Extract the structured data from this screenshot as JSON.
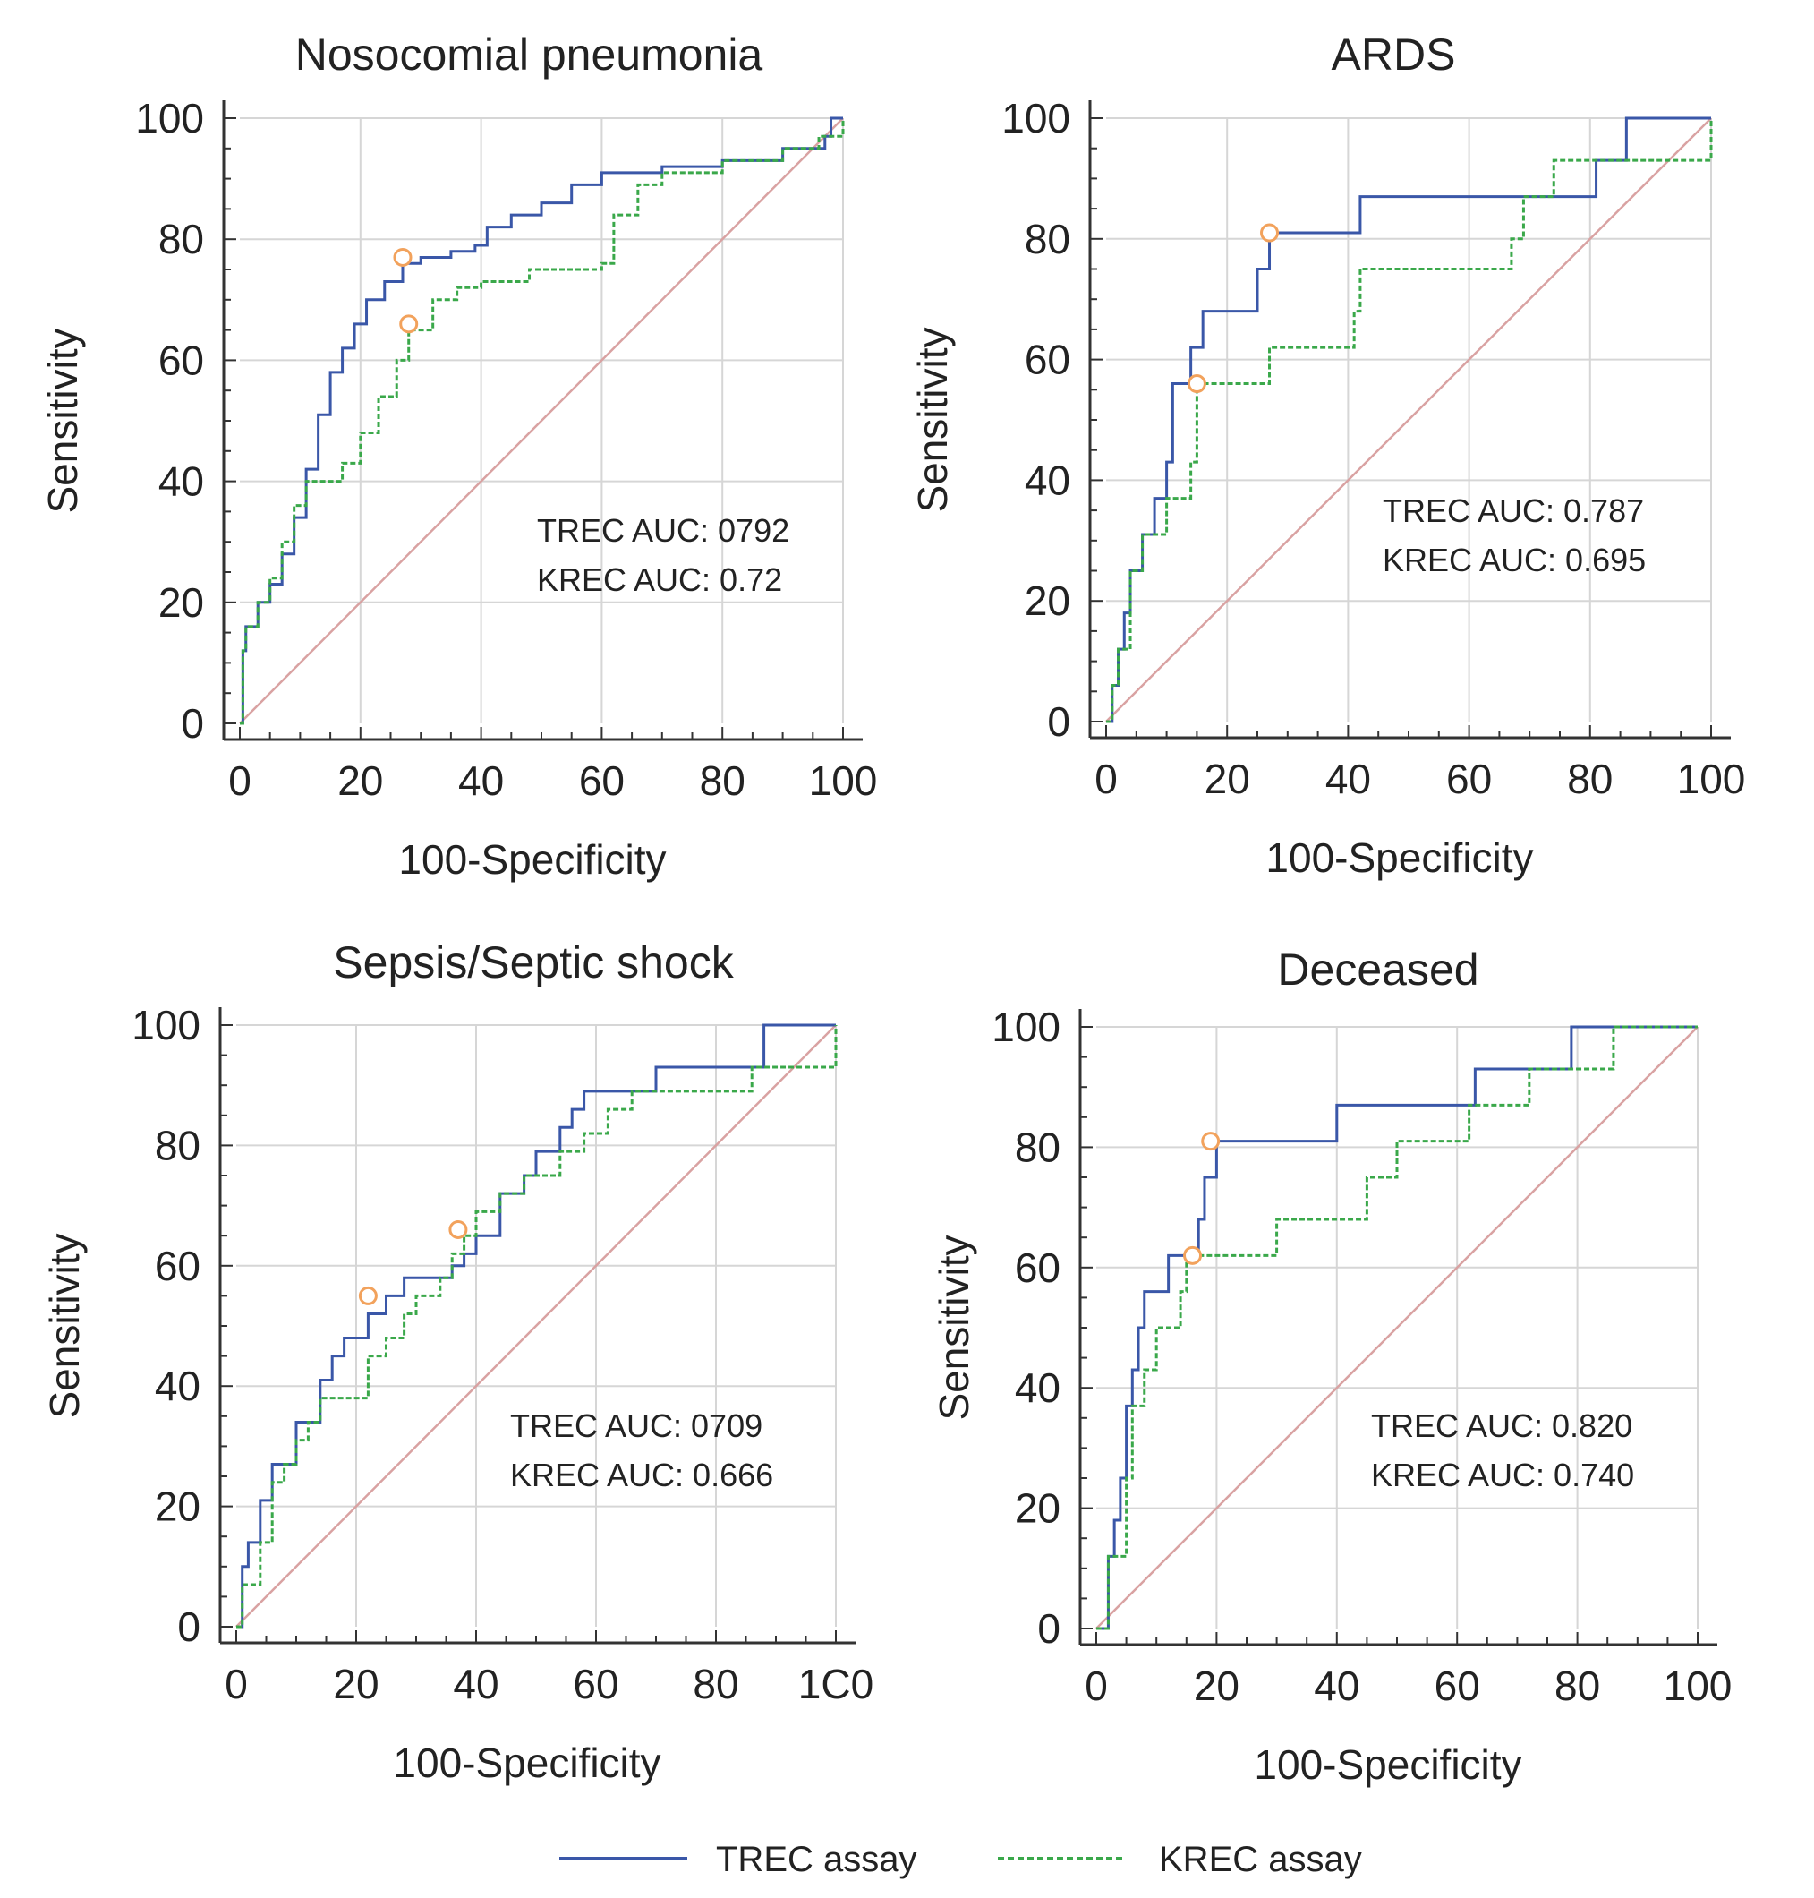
{
  "colors": {
    "trec": "#3a57a8",
    "krec": "#3aa84a",
    "reference": "#d9a2a2",
    "cutoff_marker": "#f2a25c",
    "grid": "#d6d6d6",
    "axis": "#333333"
  },
  "legend": {
    "trec_label": "TREC assay",
    "krec_label": "KREC assay"
  },
  "chart_data": [
    {
      "type": "line",
      "title": "Nosocomial pneumonia",
      "xlabel": "100-Specificity",
      "ylabel": "Sensitivity",
      "xlim": [
        0,
        100
      ],
      "ylim": [
        0,
        100
      ],
      "xticks": [
        0,
        20,
        40,
        60,
        80,
        100
      ],
      "yticks": [
        0,
        20,
        40,
        60,
        80,
        100
      ],
      "xtick_labels": [
        "0",
        "20",
        "40",
        "60",
        "80",
        "100"
      ],
      "ytick_labels": [
        "0",
        "20",
        "40",
        "60",
        "80",
        "100"
      ],
      "grid": true,
      "annotations": [
        "TREC AUC: 0792",
        "KREC AUC: 0.72"
      ],
      "series": [
        {
          "name": "TREC assay",
          "x": [
            0,
            0.5,
            1,
            3,
            5,
            7,
            9,
            11,
            13,
            15,
            17,
            19,
            21,
            24,
            27,
            30,
            35,
            39,
            41,
            45,
            50,
            55,
            60,
            70,
            80,
            90,
            97,
            98,
            100
          ],
          "y": [
            0,
            12,
            16,
            20,
            23,
            28,
            34,
            42,
            51,
            58,
            62,
            66,
            70,
            73,
            76,
            77,
            78,
            79,
            82,
            84,
            86,
            89,
            91,
            92,
            93,
            95,
            97,
            100,
            100
          ],
          "cutoff": [
            27,
            77
          ]
        },
        {
          "name": "KREC assay",
          "x": [
            0,
            0.5,
            1,
            3,
            5,
            7,
            9,
            11,
            14,
            17,
            20,
            23,
            26,
            28,
            32,
            36,
            40,
            48,
            60,
            62,
            66,
            70,
            80,
            90,
            96,
            100,
            100
          ],
          "y": [
            0,
            12,
            16,
            20,
            24,
            30,
            36,
            40,
            40,
            43,
            48,
            54,
            60,
            65,
            70,
            72,
            73,
            75,
            76,
            84,
            89,
            91,
            93,
            95,
            97,
            97,
            100
          ],
          "cutoff": [
            28,
            66
          ]
        }
      ]
    },
    {
      "type": "line",
      "title": "ARDS",
      "xlabel": "100-Specificity",
      "ylabel": "Sensitivity",
      "xlim": [
        0,
        100
      ],
      "ylim": [
        0,
        100
      ],
      "xticks": [
        0,
        20,
        40,
        60,
        80,
        100
      ],
      "yticks": [
        0,
        20,
        40,
        60,
        80,
        100
      ],
      "xtick_labels": [
        "0",
        "20",
        "40",
        "60",
        "80",
        "100"
      ],
      "ytick_labels": [
        "0",
        "20",
        "40",
        "60",
        "80",
        "100"
      ],
      "grid": true,
      "annotations": [
        "TREC AUC: 0.787",
        "KREC AUC: 0.695"
      ],
      "series": [
        {
          "name": "TREC assay",
          "x": [
            0,
            1,
            2,
            3,
            4,
            6,
            8,
            10,
            11,
            13,
            14,
            16,
            18,
            22,
            25,
            27,
            33,
            41,
            42,
            50,
            80,
            81,
            86,
            100
          ],
          "y": [
            0,
            6,
            12,
            18,
            25,
            31,
            37,
            43,
            56,
            56,
            62,
            68,
            68,
            68,
            75,
            81,
            81,
            81,
            87,
            87,
            87,
            93,
            100,
            100
          ],
          "cutoff": [
            27,
            81
          ]
        },
        {
          "name": "KREC assay",
          "x": [
            0,
            1,
            2,
            4,
            6,
            8,
            10,
            12,
            14,
            15,
            16,
            20,
            23,
            25,
            27,
            40,
            41,
            42,
            58,
            62,
            67,
            69,
            74,
            80,
            99,
            100
          ],
          "y": [
            0,
            6,
            12,
            25,
            31,
            31,
            37,
            37,
            43,
            56,
            56,
            56,
            56,
            56,
            62,
            62,
            68,
            75,
            75,
            75,
            80,
            87,
            93,
            93,
            93,
            100
          ],
          "cutoff": [
            15,
            56
          ]
        }
      ]
    },
    {
      "type": "line",
      "title": "Sepsis/Septic shock",
      "xlabel": "100-Specificity",
      "ylabel": "Sensitivity",
      "xlim": [
        0,
        100
      ],
      "ylim": [
        0,
        100
      ],
      "xticks": [
        0,
        20,
        40,
        60,
        80,
        100
      ],
      "yticks": [
        0,
        20,
        40,
        60,
        80,
        100
      ],
      "xtick_labels": [
        "0",
        "20",
        "40",
        "60",
        "80",
        "1C0"
      ],
      "ytick_labels": [
        "0",
        "20",
        "40",
        "60",
        "80",
        "100"
      ],
      "grid": true,
      "annotations": [
        "TREC AUC: 0709",
        "KREC AUC: 0.666"
      ],
      "series": [
        {
          "name": "TREC assay",
          "x": [
            0,
            1,
            2,
            4,
            6,
            8,
            10,
            12,
            14,
            16,
            18,
            20,
            22,
            25,
            28,
            32,
            36,
            38,
            40,
            44,
            48,
            50,
            54,
            56,
            58,
            62,
            66,
            70,
            80,
            87,
            88,
            100
          ],
          "y": [
            0,
            10,
            14,
            21,
            27,
            27,
            34,
            34,
            41,
            45,
            48,
            48,
            52,
            55,
            58,
            58,
            60,
            62,
            65,
            72,
            75,
            79,
            83,
            86,
            89,
            89,
            89,
            93,
            93,
            93,
            100,
            100
          ],
          "cutoff": [
            22,
            55
          ]
        },
        {
          "name": "KREC assay",
          "x": [
            0,
            1,
            2,
            4,
            6,
            8,
            10,
            12,
            14,
            16,
            20,
            22,
            25,
            28,
            30,
            34,
            36,
            38,
            40,
            44,
            48,
            50,
            54,
            58,
            62,
            66,
            72,
            80,
            84,
            86,
            98,
            100
          ],
          "y": [
            0,
            7,
            7,
            14,
            24,
            27,
            31,
            34,
            38,
            38,
            38,
            45,
            48,
            52,
            55,
            58,
            62,
            65,
            69,
            72,
            75,
            75,
            79,
            82,
            86,
            89,
            89,
            89,
            89,
            93,
            93,
            100
          ],
          "cutoff": [
            37,
            66
          ]
        }
      ]
    },
    {
      "type": "line",
      "title": "Deceased",
      "xlabel": "100-Specificity",
      "ylabel": "Sensitivity",
      "xlim": [
        0,
        100
      ],
      "ylim": [
        0,
        100
      ],
      "xticks": [
        0,
        20,
        40,
        60,
        80,
        100
      ],
      "yticks": [
        0,
        20,
        40,
        60,
        80,
        100
      ],
      "xtick_labels": [
        "0",
        "20",
        "40",
        "60",
        "80",
        "100"
      ],
      "ytick_labels": [
        "0",
        "20",
        "40",
        "60",
        "80",
        "100"
      ],
      "grid": true,
      "annotations": [
        "TREC AUC: 0.820",
        "KREC AUC: 0.740"
      ],
      "series": [
        {
          "name": "TREC assay",
          "x": [
            0,
            2,
            3,
            4,
            5,
            6,
            7,
            8,
            10,
            12,
            14,
            16,
            17,
            18,
            19,
            20,
            30,
            39,
            40,
            60,
            63,
            70,
            78,
            79,
            100
          ],
          "y": [
            0,
            12,
            18,
            25,
            37,
            43,
            50,
            56,
            56,
            62,
            62,
            62,
            68,
            75,
            75,
            81,
            81,
            81,
            87,
            87,
            93,
            93,
            93,
            100,
            100
          ],
          "cutoff": [
            19,
            81
          ]
        },
        {
          "name": "KREC assay",
          "x": [
            0,
            2,
            4,
            5,
            6,
            8,
            10,
            12,
            14,
            15,
            16,
            20,
            24,
            28,
            30,
            38,
            44,
            45,
            50,
            58,
            62,
            64,
            70,
            72,
            80,
            84,
            86,
            100
          ],
          "y": [
            0,
            12,
            12,
            25,
            37,
            43,
            50,
            50,
            56,
            62,
            62,
            62,
            62,
            62,
            68,
            68,
            68,
            75,
            81,
            81,
            87,
            87,
            87,
            93,
            93,
            93,
            100,
            100
          ],
          "cutoff": [
            16,
            62
          ]
        }
      ]
    }
  ]
}
